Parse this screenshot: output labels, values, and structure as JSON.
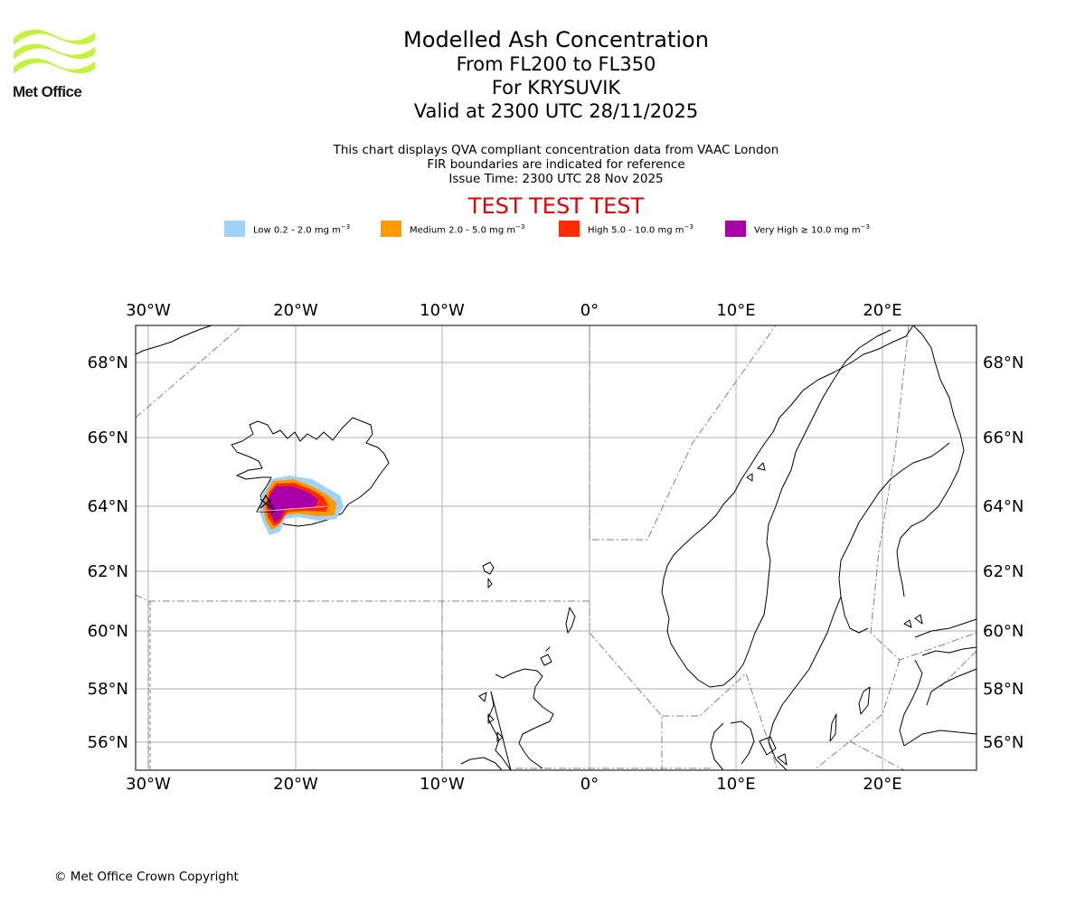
{
  "logo": {
    "text": "Met Office"
  },
  "header": {
    "title": "Modelled Ash Concentration",
    "levels": "From FL200 to FL350",
    "volcano": "For KRYSUVIK",
    "valid": "Valid at 2300 UTC 28/11/2025"
  },
  "description": {
    "line1": "This chart displays QVA compliant concentration data from VAAC London",
    "line2": "FIR boundaries are indicated for reference",
    "line3": "Issue Time: 2300 UTC 28 Nov 2025"
  },
  "test_banner": "TEST TEST TEST",
  "legend": [
    {
      "label": "Low 0.2 - 2.0 mg m",
      "color": "#a0d2fa"
    },
    {
      "label": "Medium 2.0 - 5.0 mg m",
      "color": "#ff9900"
    },
    {
      "label": "High 5.0 - 10.0 mg m",
      "color": "#ff2a00"
    },
    {
      "label": "Very High ≥ 10.0 mg m",
      "color": "#aa00aa"
    }
  ],
  "legend_unit_exponent": "−3",
  "map": {
    "lon_labels": [
      "30°W",
      "20°W",
      "10°W",
      "0°",
      "10°E",
      "20°E"
    ],
    "lat_labels": [
      "68°N",
      "66°N",
      "64°N",
      "62°N",
      "60°N",
      "58°N",
      "56°N"
    ]
  },
  "copyright": "© Met Office Crown Copyright"
}
